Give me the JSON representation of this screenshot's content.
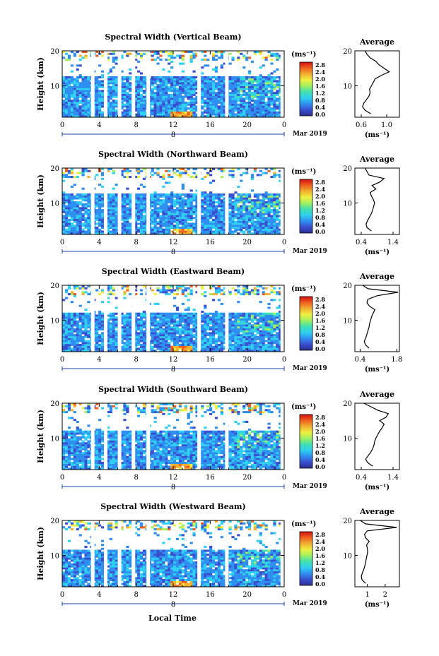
{
  "figure": {
    "xlabel_bottom": "Local Time"
  },
  "colorbar": {
    "unit": "(ms⁻¹)",
    "ticks": [
      "2.8",
      "2.4",
      "2.0",
      "1.6",
      "1.2",
      "0.8",
      "0.4",
      "0.0"
    ],
    "colors": [
      "#2b2f8f",
      "#3a4fd0",
      "#2f8ff0",
      "#2fd0f0",
      "#40e0b0",
      "#a0f060",
      "#f0f040",
      "#f0b030",
      "#f06020",
      "#d01010"
    ]
  },
  "chart_data": [
    {
      "type": "heatmap",
      "title": "Spectral Width (Vertical Beam)",
      "ylabel": "Height (km)",
      "x_ticks": [
        "0",
        "4",
        "8",
        "12",
        "16",
        "20",
        "0"
      ],
      "y_ticks": [
        "20",
        "10"
      ],
      "xlim": [
        0,
        24
      ],
      "ylim": [
        1,
        20
      ],
      "date_marker": "8",
      "date_label": "Mar 2019",
      "avg_profile": {
        "title": "Average",
        "xlabel": "(ms⁻¹)",
        "x_ticks": [
          "0.6",
          "1.0"
        ],
        "xlim": [
          0.5,
          1.2
        ],
        "y_ticks": [
          "20",
          "10"
        ],
        "height": [
          2,
          3,
          4,
          5,
          6,
          7,
          8,
          9,
          10,
          11,
          12,
          13,
          14,
          15,
          16,
          17,
          18,
          19,
          20
        ],
        "width": [
          0.75,
          0.66,
          0.62,
          0.64,
          0.68,
          0.72,
          0.74,
          0.73,
          0.76,
          0.79,
          0.82,
          0.92,
          1.04,
          0.96,
          0.88,
          0.83,
          0.74,
          0.69,
          0.66
        ]
      }
    },
    {
      "type": "heatmap",
      "title": "Spectral Width (Northward Beam)",
      "ylabel": "Height (km)",
      "x_ticks": [
        "0",
        "4",
        "8",
        "12",
        "16",
        "20",
        "0"
      ],
      "y_ticks": [
        "20",
        "10"
      ],
      "xlim": [
        0,
        24
      ],
      "ylim": [
        1,
        20
      ],
      "date_marker": "8",
      "date_label": "Mar 2019",
      "avg_profile": {
        "title": "Average",
        "xlabel": "(ms⁻¹)",
        "x_ticks": [
          "0.4",
          "1.4"
        ],
        "xlim": [
          0.2,
          1.6
        ],
        "y_ticks": [
          "20",
          "10"
        ],
        "height": [
          2,
          3,
          4,
          5,
          6,
          7,
          8,
          9,
          10,
          11,
          12,
          13,
          14,
          15,
          16,
          17,
          18,
          19,
          20
        ],
        "width": [
          0.72,
          0.58,
          0.55,
          0.6,
          0.66,
          0.72,
          0.76,
          0.79,
          0.82,
          0.78,
          0.72,
          0.68,
          0.86,
          0.74,
          0.98,
          1.12,
          0.64,
          0.58,
          0.52
        ]
      }
    },
    {
      "type": "heatmap",
      "title": "Spectral Width (Eastward Beam)",
      "ylabel": "Height (km)",
      "x_ticks": [
        "0",
        "4",
        "8",
        "12",
        "16",
        "20",
        "0"
      ],
      "y_ticks": [
        "20",
        "10"
      ],
      "xlim": [
        0,
        24
      ],
      "ylim": [
        1,
        20
      ],
      "date_marker": "8",
      "date_label": "Mar 2019",
      "avg_profile": {
        "title": "Average",
        "xlabel": "(ms⁻¹)",
        "x_ticks": [
          "0.4",
          "1.8"
        ],
        "xlim": [
          0.2,
          1.9
        ],
        "y_ticks": [
          "20",
          "10"
        ],
        "height": [
          2,
          3,
          4,
          5,
          6,
          7,
          8,
          9,
          10,
          11,
          12,
          13,
          14,
          15,
          16,
          17,
          18,
          19,
          20
        ],
        "width": [
          0.74,
          0.6,
          0.56,
          0.62,
          0.66,
          0.7,
          0.74,
          0.76,
          0.8,
          0.84,
          0.9,
          0.96,
          0.76,
          0.66,
          0.7,
          1.05,
          1.85,
          0.7,
          0.5
        ]
      }
    },
    {
      "type": "heatmap",
      "title": "Spectral Width (Southward Beam)",
      "ylabel": "Height (km)",
      "x_ticks": [
        "0",
        "4",
        "8",
        "12",
        "16",
        "20",
        "0"
      ],
      "y_ticks": [
        "20",
        "10"
      ],
      "xlim": [
        0,
        24
      ],
      "ylim": [
        1,
        20
      ],
      "date_marker": "8",
      "date_label": "Mar 2019",
      "avg_profile": {
        "title": "Average",
        "xlabel": "(ms⁻¹)",
        "x_ticks": [
          "0.4",
          "1.4"
        ],
        "xlim": [
          0.2,
          1.6
        ],
        "y_ticks": [
          "20",
          "10"
        ],
        "height": [
          2,
          3,
          4,
          5,
          6,
          7,
          8,
          9,
          10,
          11,
          12,
          13,
          14,
          15,
          16,
          17,
          18,
          19,
          20
        ],
        "width": [
          0.76,
          0.6,
          0.54,
          0.62,
          0.7,
          0.76,
          0.8,
          0.82,
          0.86,
          0.92,
          0.98,
          1.06,
          1.12,
          0.98,
          1.18,
          1.25,
          0.92,
          0.7,
          0.48
        ]
      }
    },
    {
      "type": "heatmap",
      "title": "Spectral Width (Westward Beam)",
      "ylabel": "Height (km)",
      "x_ticks": [
        "0",
        "4",
        "8",
        "12",
        "16",
        "20",
        "0"
      ],
      "y_ticks": [
        "20",
        "10"
      ],
      "xlim": [
        0,
        24
      ],
      "ylim": [
        1,
        20
      ],
      "date_marker": "8",
      "date_label": "Mar 2019",
      "avg_profile": {
        "title": "Average",
        "xlabel": "(ms⁻¹)",
        "x_ticks": [
          "1",
          "2"
        ],
        "xlim": [
          0.3,
          2.8
        ],
        "y_ticks": [
          "20",
          "10"
        ],
        "height": [
          2,
          3,
          4,
          5,
          6,
          7,
          8,
          9,
          10,
          11,
          12,
          13,
          14,
          15,
          16,
          17,
          18,
          19,
          20
        ],
        "width": [
          0.9,
          0.7,
          0.66,
          0.72,
          0.8,
          0.86,
          0.9,
          0.94,
          0.98,
          1.02,
          1.0,
          0.96,
          1.1,
          0.9,
          0.84,
          1.0,
          2.65,
          0.9,
          0.6
        ]
      }
    }
  ]
}
